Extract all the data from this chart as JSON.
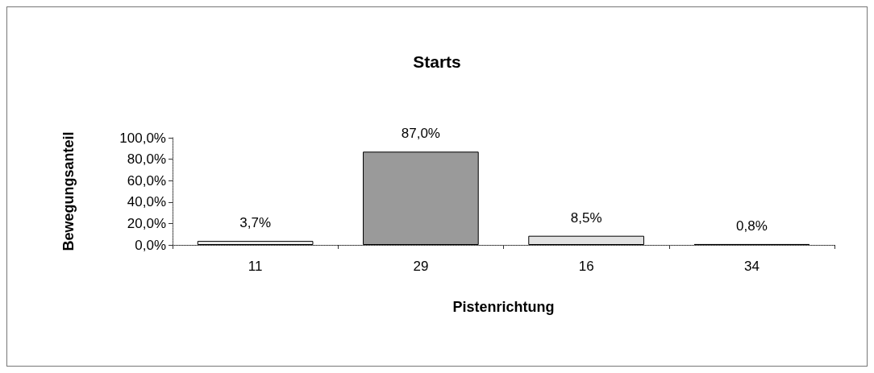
{
  "chart_data": {
    "type": "bar",
    "title": "Starts",
    "xlabel": "Pistenrichtung",
    "ylabel": "Bewegungsanteil",
    "categories": [
      "11",
      "29",
      "16",
      "34"
    ],
    "values": [
      3.7,
      87.0,
      8.5,
      0.8
    ],
    "colors": [
      "#eeeeee",
      "#9a9a9a",
      "#e2e2e2",
      "#eeeeee"
    ],
    "value_labels": [
      "3,7%",
      "87,0%",
      "8,5%",
      "0,8%"
    ],
    "ylim": [
      0,
      100
    ],
    "yticks": [
      {
        "value": 0,
        "label": "0,0%"
      },
      {
        "value": 20,
        "label": "20,0%"
      },
      {
        "value": 40,
        "label": "40,0%"
      },
      {
        "value": 60,
        "label": "60,0%"
      },
      {
        "value": 80,
        "label": "80,0%"
      },
      {
        "value": 100,
        "label": "100,0%"
      }
    ],
    "grid": false
  }
}
